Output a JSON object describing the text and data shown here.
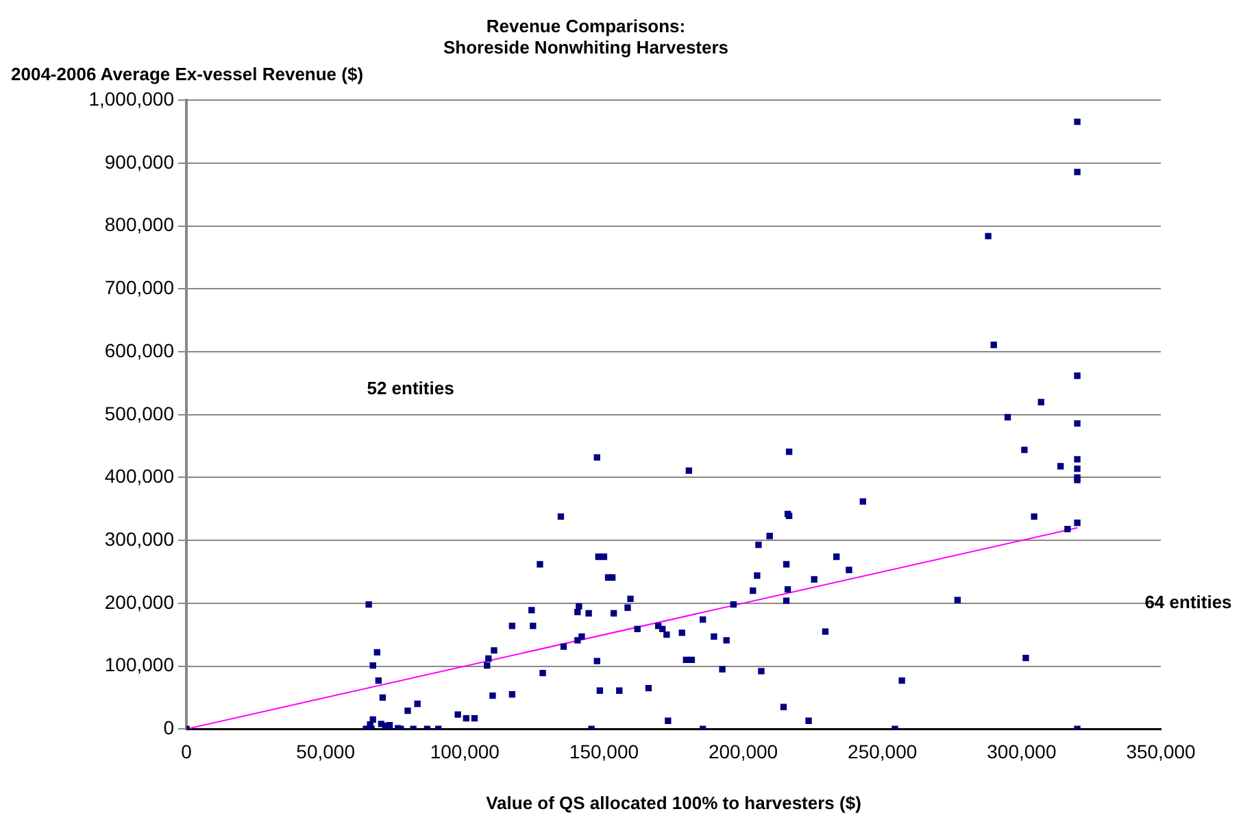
{
  "chart_data": {
    "type": "scatter",
    "title": "Revenue Comparisons:\nShoreside Nonwhiting Harvesters",
    "xlabel": "Value of QS allocated 100% to harvesters ($)",
    "ylabel": "2004-2006 Average Ex-vessel Revenue ($)",
    "xlim": [
      0,
      350000
    ],
    "xticks": [
      0,
      {
        "value": 50000,
        "label": "50,000"
      },
      {
        "value": 100000,
        "label": "100,000"
      },
      {
        "value": 150000,
        "label": "150,000"
      },
      {
        "value": 200000,
        "label": "200,000"
      },
      {
        "value": 250000,
        "label": "250,000"
      },
      {
        "value": 300000,
        "label": "300,000"
      },
      {
        "value": 350000,
        "label": "350,000"
      }
    ],
    "ylim": [
      0,
      1000000
    ],
    "yticks": [
      0,
      {
        "value": 100000,
        "label": "100,000"
      },
      {
        "value": 200000,
        "label": "200,000"
      },
      {
        "value": 300000,
        "label": "300,000"
      },
      {
        "value": 400000,
        "label": "400,000"
      },
      {
        "value": 500000,
        "label": "500,000"
      },
      {
        "value": 600000,
        "label": "600,000"
      },
      {
        "value": 700000,
        "label": "700,000"
      },
      {
        "value": 800000,
        "label": "800,000"
      },
      {
        "value": 900000,
        "label": "900,000"
      },
      {
        "value": 1000000,
        "label": "1,000,000"
      }
    ],
    "grid": "y",
    "legend": false,
    "annotations": [
      "52 entities",
      "64 entities"
    ],
    "series": [
      {
        "type": "scatter",
        "marker": "square",
        "color": "#000080",
        "x": [
          320000,
          320000,
          288000,
          290000,
          320000,
          307000,
          295000,
          320000,
          301000,
          314000,
          320000,
          320000,
          320000,
          320000,
          304500,
          316500,
          320000,
          277000,
          301500,
          257000,
          254500,
          320000,
          0,
          65500,
          68500,
          67000,
          69000,
          70500,
          79500,
          83000,
          97500,
          100500,
          103500,
          108000,
          108500,
          110500,
          110000,
          117000,
          117000,
          124500,
          124000,
          127000,
          67000,
          66000,
          70000,
          72000,
          73000,
          76000,
          77000,
          81500,
          86500,
          90500,
          64500,
          66500,
          71500,
          65500,
          147500,
          180500,
          216500,
          134500,
          243000,
          216000,
          216500,
          209500,
          205500,
          148000,
          150000,
          151500,
          153000,
          233500,
          215500,
          238000,
          205000,
          225500,
          203500,
          216000,
          215500,
          196500,
          141000,
          140500,
          144500,
          159500,
          158500,
          153500,
          162000,
          169500,
          171000,
          172500,
          178000,
          185500,
          189500,
          194000,
          142000,
          140500,
          135500,
          229500,
          147500,
          179500,
          181500,
          128000,
          192500,
          206500,
          148500,
          155500,
          166000,
          214500,
          173000,
          223500,
          145500,
          185500
        ],
        "values": [
          966000,
          886000,
          784000,
          611000,
          562000,
          520000,
          496000,
          486000,
          444000,
          418000,
          429000,
          414000,
          400000,
          396000,
          338000,
          318000,
          328000,
          205000,
          113000,
          77000,
          0,
          0,
          0,
          198000,
          122000,
          101000,
          77000,
          50000,
          29000,
          40000,
          23000,
          17000,
          17000,
          101000,
          112000,
          125000,
          53000,
          55000,
          164000,
          164000,
          189000,
          262000,
          15000,
          7000,
          8000,
          5000,
          6000,
          1000,
          0,
          0,
          0,
          0,
          0,
          0,
          0,
          0,
          432000,
          411000,
          441000,
          338000,
          362000,
          342000,
          339000,
          307000,
          293000,
          274000,
          274000,
          241000,
          241000,
          274000,
          262000,
          253000,
          244000,
          238000,
          220000,
          222000,
          204000,
          198000,
          195000,
          186000,
          184000,
          207000,
          193000,
          184000,
          159000,
          164000,
          159000,
          150000,
          153000,
          174000,
          147000,
          141000,
          147000,
          141000,
          131000,
          155000,
          108000,
          110000,
          110000,
          89000,
          95000,
          92000,
          61000,
          61000,
          65000,
          35000,
          13000,
          13000,
          0,
          0
        ]
      },
      {
        "type": "line",
        "color": "#ff00ff",
        "x": [
          0,
          320000
        ],
        "values": [
          0,
          320000
        ]
      }
    ]
  }
}
